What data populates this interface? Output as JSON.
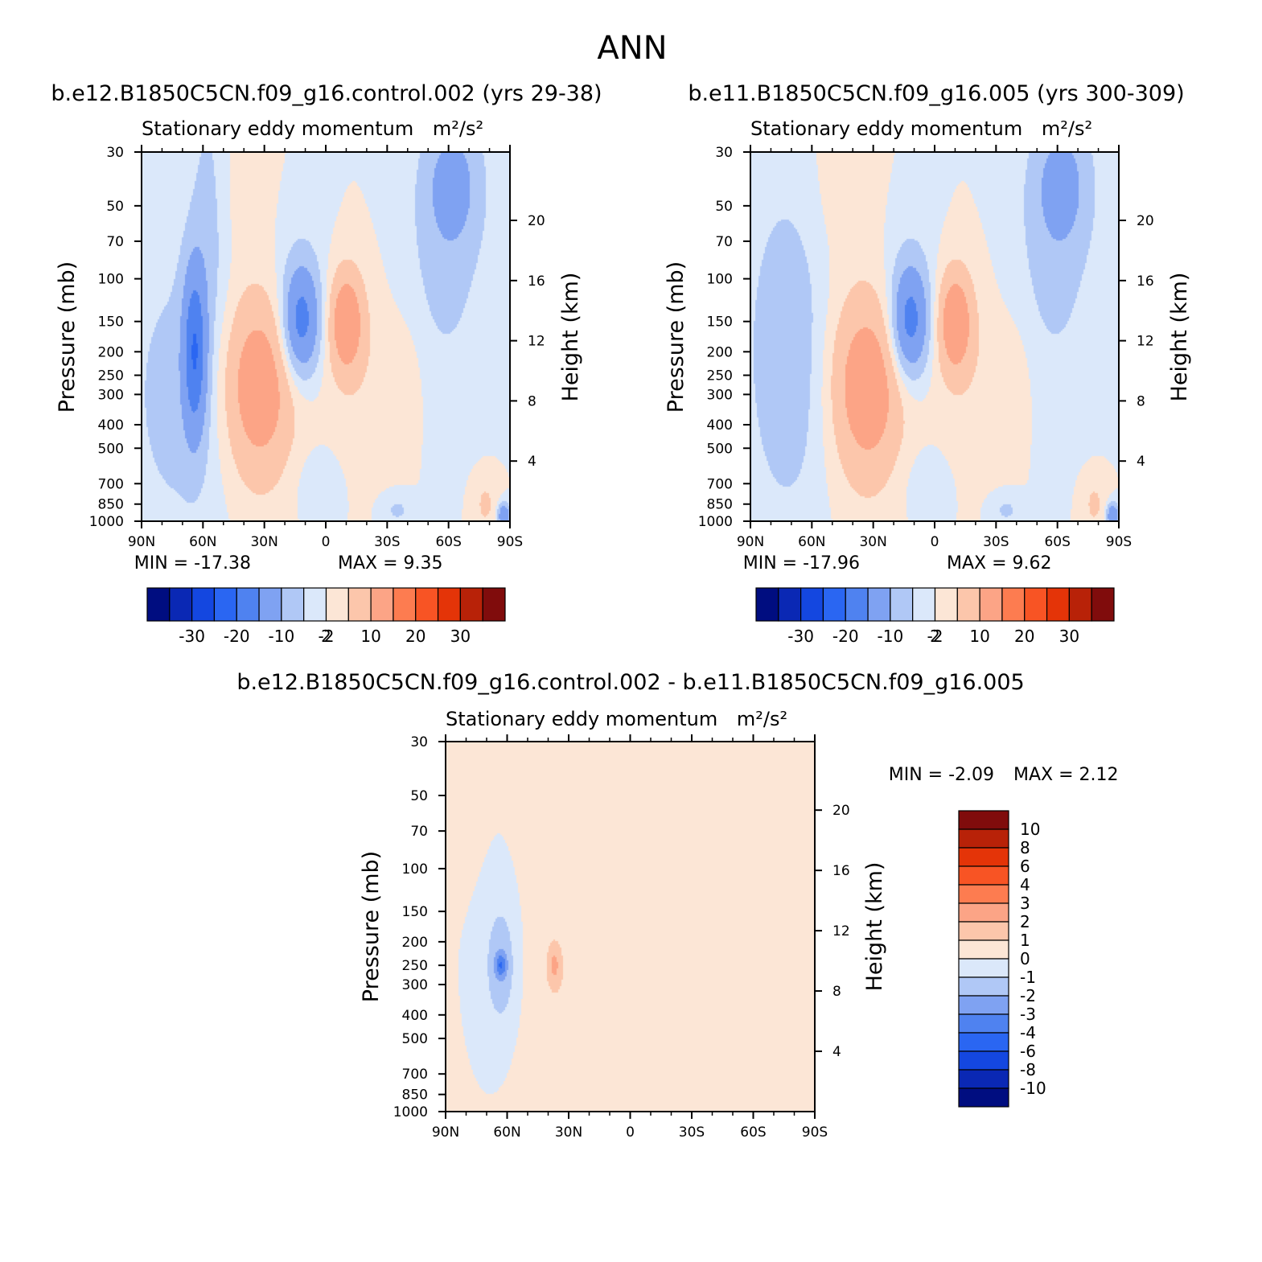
{
  "figure_title": "ANN",
  "chart_data": [
    {
      "type": "heatmap",
      "id": "top-left",
      "title": "b.e12.B1850C5CN.f09_g16.control.002 (yrs 29-38)",
      "subtitle": "Stationary eddy momentum",
      "units": "m²/s²",
      "ylabel": "Pressure (mb)",
      "ylabel_right": "Height (km)",
      "x_ticks": [
        "90N",
        "60N",
        "30N",
        "0",
        "30S",
        "60S",
        "90S"
      ],
      "x_range": [
        90,
        -90
      ],
      "y_ticks": [
        "30",
        "50",
        "70",
        "100",
        "150",
        "200",
        "250",
        "300",
        "400",
        "500",
        "700",
        "850",
        "1000"
      ],
      "y_range": [
        30,
        1000
      ],
      "y_scale": "log",
      "y2_ticks": [
        "20",
        "16",
        "12",
        "8",
        "4"
      ],
      "min_label": "MIN = -17.38",
      "max_label": "MAX = 9.35",
      "min": -17.38,
      "max": 9.35,
      "colorbar": {
        "orientation": "horizontal",
        "levels": [
          "-30",
          "-20",
          "-10",
          "-2",
          "2",
          "10",
          "20",
          "30"
        ],
        "colors": [
          "#000d80",
          "#0a28b4",
          "#1447e0",
          "#2a66f2",
          "#4f82f0",
          "#7fa2f2",
          "#b0c8f6",
          "#dbe8fa",
          "#fce6d6",
          "#fcc6ab",
          "#fca486",
          "#fd7c50",
          "#f85424",
          "#e43408",
          "#b82208",
          "#800c0c"
        ]
      },
      "blobs": [
        {
          "lat": 72,
          "p": 300,
          "sx": 18,
          "sy": 1.0,
          "v": -3
        },
        {
          "lat": 64,
          "p": 200,
          "sx": 4,
          "sy": 0.55,
          "v": -13
        },
        {
          "lat": 57,
          "p": 50,
          "sx": 7,
          "sy": 0.9,
          "v": -3
        },
        {
          "lat": 33,
          "p": 250,
          "sx": 13,
          "sy": 0.55,
          "v": 7
        },
        {
          "lat": 33,
          "p": 500,
          "sx": 12,
          "sy": 0.5,
          "v": 2
        },
        {
          "lat": 12,
          "p": 150,
          "sx": 6,
          "sy": 0.35,
          "v": -11
        },
        {
          "lat": 12,
          "p": 120,
          "sx": 9,
          "sy": 0.6,
          "v": -2
        },
        {
          "lat": -10,
          "p": 150,
          "sx": 6,
          "sy": 0.35,
          "v": 8
        },
        {
          "lat": -20,
          "p": 250,
          "sx": 15,
          "sy": 0.6,
          "v": 1.2
        },
        {
          "lat": 5,
          "p": 700,
          "sx": 8,
          "sy": 0.25,
          "v": -1.3
        },
        {
          "lat": 45,
          "p": 45,
          "sx": 12,
          "sy": 0.6,
          "v": 1.2
        },
        {
          "lat": -40,
          "p": 250,
          "sx": 6,
          "sy": 0.4,
          "v": 1.1
        },
        {
          "lat": -62,
          "p": 40,
          "sx": 10,
          "sy": 0.45,
          "v": -6
        },
        {
          "lat": -58,
          "p": 100,
          "sx": 14,
          "sy": 0.8,
          "v": -2.5
        },
        {
          "lat": -78,
          "p": 850,
          "sx": 4,
          "sy": 0.18,
          "v": 2.5
        },
        {
          "lat": -35,
          "p": 900,
          "sx": 5,
          "sy": 0.1,
          "v": -2.5
        },
        {
          "lat": -87,
          "p": 950,
          "sx": 2,
          "sy": 0.08,
          "v": -10
        }
      ]
    },
    {
      "type": "heatmap",
      "id": "top-right",
      "title": "b.e11.B1850C5CN.f09_g16.005 (yrs 300-309)",
      "subtitle": "Stationary eddy momentum",
      "units": "m²/s²",
      "ylabel": "Pressure (mb)",
      "ylabel_right": "Height (km)",
      "x_ticks": [
        "90N",
        "60N",
        "30N",
        "0",
        "30S",
        "60S",
        "90S"
      ],
      "x_range": [
        90,
        -90
      ],
      "y_ticks": [
        "30",
        "50",
        "70",
        "100",
        "150",
        "200",
        "250",
        "300",
        "400",
        "500",
        "700",
        "850",
        "1000"
      ],
      "y_range": [
        30,
        1000
      ],
      "y_scale": "log",
      "y2_ticks": [
        "20",
        "16",
        "12",
        "8",
        "4"
      ],
      "min_label": "MIN = -17.96",
      "max_label": "MAX = 9.62",
      "min": -17.96,
      "max": 9.62,
      "colorbar": {
        "orientation": "horizontal",
        "levels": [
          "-30",
          "-20",
          "-10",
          "-2",
          "2",
          "10",
          "20",
          "30"
        ],
        "colors": [
          "#000d80",
          "#0a28b4",
          "#1447e0",
          "#2a66f2",
          "#4f82f0",
          "#7fa2f2",
          "#b0c8f6",
          "#dbe8fa",
          "#fce6d6",
          "#fcc6ab",
          "#fca486",
          "#fd7c50",
          "#f85424",
          "#e43408",
          "#b82208",
          "#800c0c"
        ]
      },
      "blobs": [
        {
          "lat": 72,
          "p": 200,
          "sx": 14,
          "sy": 1.1,
          "v": -4
        },
        {
          "lat": 33,
          "p": 250,
          "sx": 13,
          "sy": 0.55,
          "v": 7
        },
        {
          "lat": 33,
          "p": 500,
          "sx": 12,
          "sy": 0.5,
          "v": 2
        },
        {
          "lat": 12,
          "p": 150,
          "sx": 6,
          "sy": 0.35,
          "v": -11
        },
        {
          "lat": 12,
          "p": 120,
          "sx": 9,
          "sy": 0.6,
          "v": -2
        },
        {
          "lat": -10,
          "p": 150,
          "sx": 6,
          "sy": 0.35,
          "v": 8
        },
        {
          "lat": -20,
          "p": 250,
          "sx": 15,
          "sy": 0.6,
          "v": 1.2
        },
        {
          "lat": 5,
          "p": 700,
          "sx": 8,
          "sy": 0.25,
          "v": -1.3
        },
        {
          "lat": 45,
          "p": 45,
          "sx": 12,
          "sy": 0.6,
          "v": 1.2
        },
        {
          "lat": -40,
          "p": 250,
          "sx": 6,
          "sy": 0.4,
          "v": 1.1
        },
        {
          "lat": -62,
          "p": 40,
          "sx": 10,
          "sy": 0.45,
          "v": -6
        },
        {
          "lat": -58,
          "p": 100,
          "sx": 14,
          "sy": 0.8,
          "v": -2.5
        },
        {
          "lat": -78,
          "p": 850,
          "sx": 4,
          "sy": 0.18,
          "v": 2.5
        },
        {
          "lat": -35,
          "p": 900,
          "sx": 5,
          "sy": 0.1,
          "v": -2.5
        },
        {
          "lat": -87,
          "p": 950,
          "sx": 2,
          "sy": 0.08,
          "v": -10
        }
      ]
    },
    {
      "type": "heatmap",
      "id": "bottom-diff",
      "title": "b.e12.B1850C5CN.f09_g16.control.002 - b.e11.B1850C5CN.f09_g16.005",
      "subtitle": "Stationary eddy momentum",
      "units": "m²/s²",
      "ylabel": "Pressure (mb)",
      "ylabel_right": "Height (km)",
      "x_ticks": [
        "90N",
        "60N",
        "30N",
        "0",
        "30S",
        "60S",
        "90S"
      ],
      "x_range": [
        90,
        -90
      ],
      "y_ticks": [
        "30",
        "50",
        "70",
        "100",
        "150",
        "200",
        "250",
        "300",
        "400",
        "500",
        "700",
        "850",
        "1000"
      ],
      "y_range": [
        30,
        1000
      ],
      "y_scale": "log",
      "y2_ticks": [
        "20",
        "16",
        "12",
        "8",
        "4"
      ],
      "min_label": "MIN = -2.09",
      "max_label": "MAX = 2.12",
      "min": -2.09,
      "max": 2.12,
      "colorbar": {
        "orientation": "vertical",
        "levels": [
          "10",
          "8",
          "6",
          "4",
          "3",
          "2",
          "1",
          "0",
          "-1",
          "-2",
          "-3",
          "-4",
          "-6",
          "-8",
          "-10"
        ],
        "colors": [
          "#800c0c",
          "#b82208",
          "#e43408",
          "#f85424",
          "#fd7c50",
          "#fca486",
          "#fcc6ab",
          "#fce6d6",
          "#dbe8fa",
          "#b0c8f6",
          "#7fa2f2",
          "#4f82f0",
          "#2a66f2",
          "#1447e0",
          "#0a28b4",
          "#000d80"
        ]
      },
      "blobs": [
        {
          "lat": 63,
          "p": 250,
          "sx": 6,
          "sy": 0.45,
          "v": -1.8
        },
        {
          "lat": 63,
          "p": 250,
          "sx": 2,
          "sy": 0.08,
          "v": -2.5
        },
        {
          "lat": 37,
          "p": 250,
          "sx": 2,
          "sy": 0.12,
          "v": 1.6
        },
        {
          "lat": 36,
          "p": 300,
          "sx": 12,
          "sy": 1.3,
          "v": 0.7
        },
        {
          "lat": -10,
          "p": 500,
          "sx": 30,
          "sy": 1.0,
          "v": 0.6
        },
        {
          "lat": -60,
          "p": 300,
          "sx": 15,
          "sy": 1.5,
          "v": 0.5
        },
        {
          "lat": 80,
          "p": 40,
          "sx": 6,
          "sy": 0.5,
          "v": 0.6
        }
      ]
    }
  ]
}
